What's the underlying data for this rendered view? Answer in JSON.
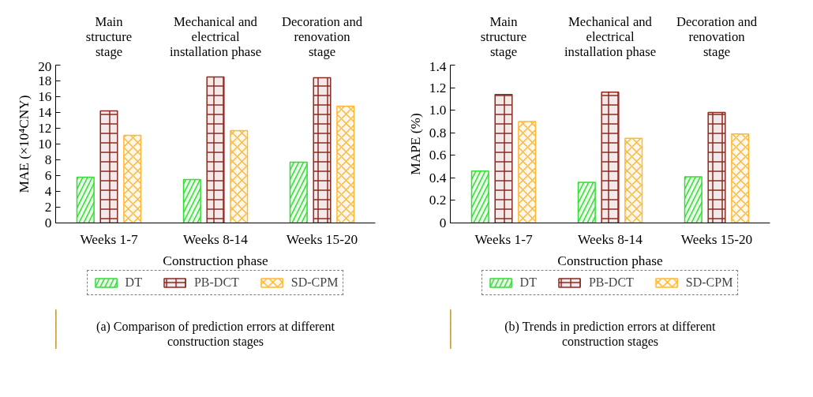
{
  "chart_data": [
    {
      "type": "bar",
      "categories": [
        "Weeks 1-7",
        "Weeks 8-14",
        "Weeks 15-20"
      ],
      "xlabel": "Construction phase",
      "ylabel": "MAE (×10⁴CNY)",
      "ylim": [
        0,
        20
      ],
      "yticks": [
        0,
        2,
        4,
        6,
        8,
        10,
        12,
        14,
        16,
        18,
        20
      ],
      "grid": false,
      "legend": "bottom",
      "series": [
        {
          "name": "DT",
          "color": "#33dd33",
          "values": [
            5.8,
            5.5,
            7.7
          ]
        },
        {
          "name": "PB-DCT",
          "color": "#8b2a22",
          "values": [
            14.2,
            18.5,
            18.4
          ]
        },
        {
          "name": "SD-CPM",
          "color": "#ffb833",
          "values": [
            11.1,
            11.7,
            14.8
          ]
        }
      ],
      "annotations": [
        "Main\nstructure\nstage",
        "Mechanical and\nelectrical\ninstallation phase",
        "Decoration and\nrenovation\nstage",
        "(a) Comparison of prediction errors at different construction stages"
      ]
    },
    {
      "type": "bar",
      "categories": [
        "Weeks 1-7",
        "Weeks 8-14",
        "Weeks 15-20"
      ],
      "xlabel": "Construction phase",
      "ylabel": "MAPE (%)",
      "ylim": [
        0,
        1.4
      ],
      "yticks": [
        0,
        0.2,
        0.4,
        0.6,
        0.8,
        {
          "value": 1,
          "label": "1.0"
        },
        1.2,
        1.4
      ],
      "grid": false,
      "legend": "bottom",
      "series": [
        {
          "name": "DT",
          "color": "#33dd33",
          "values": [
            0.46,
            0.36,
            0.41
          ]
        },
        {
          "name": "PB-DCT",
          "color": "#8b2a22",
          "values": [
            1.14,
            1.16,
            0.98
          ]
        },
        {
          "name": "SD-CPM",
          "color": "#ffb833",
          "values": [
            0.9,
            0.75,
            0.79
          ]
        }
      ],
      "annotations": [
        "Main\nstructure\nstage",
        "Mechanical and\nelectrical\ninstallation phase",
        "Decoration and\nrenovation\nstage",
        "(b) Trends in prediction errors at different construction stages"
      ]
    }
  ]
}
